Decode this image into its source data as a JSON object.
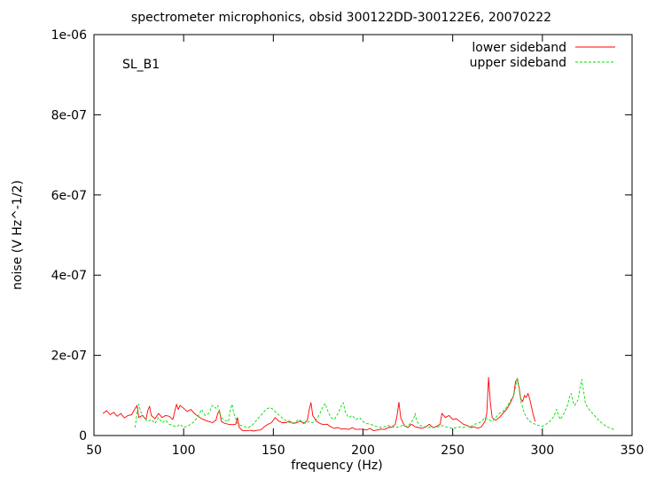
{
  "chart_data": {
    "type": "line",
    "title": "spectrometer microphonics, obsid 300122DD-300122E6, 20070222",
    "annotation": "SL_B1",
    "xlabel": "frequency (Hz)",
    "ylabel": "noise (V Hz^-1/2)",
    "xlim": [
      50,
      350
    ],
    "ylim": [
      0,
      1e-06
    ],
    "xticks": [
      50,
      100,
      150,
      200,
      250,
      300,
      350
    ],
    "xtick_labels": [
      "50",
      "100",
      "150",
      "200",
      "250",
      "300",
      "350"
    ],
    "yticks": [
      0,
      2e-07,
      4e-07,
      6e-07,
      8e-07,
      1e-06
    ],
    "ytick_labels": [
      "0",
      "2e-07",
      "4e-07",
      "6e-07",
      "8e-07",
      "1e-06"
    ],
    "grid": false,
    "legend_position": "top-right",
    "series": [
      {
        "name": "lower sideband",
        "color": "#ff0000",
        "dashed": false,
        "points": [
          [
            55,
            5.5e-08
          ],
          [
            57,
            6.2e-08
          ],
          [
            59,
            5.2e-08
          ],
          [
            61,
            5.8e-08
          ],
          [
            63,
            4.8e-08
          ],
          [
            65,
            5.5e-08
          ],
          [
            67,
            4.4e-08
          ],
          [
            69,
            5e-08
          ],
          [
            71,
            5.2e-08
          ],
          [
            73,
            6.8e-08
          ],
          [
            74,
            7.5e-08
          ],
          [
            75,
            4.5e-08
          ],
          [
            77,
            5e-08
          ],
          [
            79,
            4e-08
          ],
          [
            80,
            6.2e-08
          ],
          [
            81,
            7.3e-08
          ],
          [
            82,
            5e-08
          ],
          [
            84,
            4.2e-08
          ],
          [
            86,
            5.5e-08
          ],
          [
            88,
            4.5e-08
          ],
          [
            90,
            5e-08
          ],
          [
            92,
            4.8e-08
          ],
          [
            94,
            4e-08
          ],
          [
            95,
            6e-08
          ],
          [
            96,
            7.8e-08
          ],
          [
            97,
            6.5e-08
          ],
          [
            98,
            7.5e-08
          ],
          [
            100,
            6.8e-08
          ],
          [
            102,
            6e-08
          ],
          [
            104,
            6.5e-08
          ],
          [
            106,
            5.5e-08
          ],
          [
            108,
            4.8e-08
          ],
          [
            110,
            4.2e-08
          ],
          [
            112,
            3.8e-08
          ],
          [
            114,
            3.5e-08
          ],
          [
            116,
            3.2e-08
          ],
          [
            118,
            3.8e-08
          ],
          [
            119,
            5.5e-08
          ],
          [
            120,
            6.2e-08
          ],
          [
            121,
            3.5e-08
          ],
          [
            123,
            3e-08
          ],
          [
            125,
            2.8e-08
          ],
          [
            127,
            2.7e-08
          ],
          [
            129,
            2.8e-08
          ],
          [
            130,
            4.5e-08
          ],
          [
            131,
            2e-08
          ],
          [
            133,
            1.2e-08
          ],
          [
            135,
            1.2e-08
          ],
          [
            137,
            1.3e-08
          ],
          [
            139,
            1.1e-08
          ],
          [
            141,
            1.3e-08
          ],
          [
            143,
            1.4e-08
          ],
          [
            145,
            2.2e-08
          ],
          [
            147,
            2.8e-08
          ],
          [
            149,
            3.2e-08
          ],
          [
            151,
            4.5e-08
          ],
          [
            153,
            3.6e-08
          ],
          [
            155,
            3.2e-08
          ],
          [
            157,
            3.2e-08
          ],
          [
            159,
            3.6e-08
          ],
          [
            161,
            3e-08
          ],
          [
            163,
            3.2e-08
          ],
          [
            165,
            3.6e-08
          ],
          [
            167,
            3e-08
          ],
          [
            169,
            3.8e-08
          ],
          [
            170,
            6.5e-08
          ],
          [
            171,
            8.2e-08
          ],
          [
            172,
            5e-08
          ],
          [
            174,
            3.6e-08
          ],
          [
            176,
            3e-08
          ],
          [
            178,
            2.7e-08
          ],
          [
            180,
            2.8e-08
          ],
          [
            182,
            2.2e-08
          ],
          [
            184,
            1.8e-08
          ],
          [
            186,
            2e-08
          ],
          [
            188,
            1.6e-08
          ],
          [
            190,
            1.7e-08
          ],
          [
            192,
            1.5e-08
          ],
          [
            194,
            2e-08
          ],
          [
            196,
            1.5e-08
          ],
          [
            198,
            1.6e-08
          ],
          [
            200,
            1.5e-08
          ],
          [
            202,
            1.4e-08
          ],
          [
            204,
            1.8e-08
          ],
          [
            206,
            1.2e-08
          ],
          [
            208,
            1.4e-08
          ],
          [
            210,
            1.6e-08
          ],
          [
            212,
            1.5e-08
          ],
          [
            214,
            2e-08
          ],
          [
            216,
            2.1e-08
          ],
          [
            218,
            2.8e-08
          ],
          [
            219,
            5e-08
          ],
          [
            220,
            8.3e-08
          ],
          [
            221,
            4.5e-08
          ],
          [
            223,
            2.5e-08
          ],
          [
            225,
            2e-08
          ],
          [
            227,
            2.8e-08
          ],
          [
            229,
            2.2e-08
          ],
          [
            231,
            2e-08
          ],
          [
            233,
            1.8e-08
          ],
          [
            235,
            2.2e-08
          ],
          [
            237,
            2.8e-08
          ],
          [
            239,
            2e-08
          ],
          [
            241,
            2.3e-08
          ],
          [
            243,
            2.8e-08
          ],
          [
            244,
            5.5e-08
          ],
          [
            246,
            4.5e-08
          ],
          [
            248,
            5e-08
          ],
          [
            250,
            4e-08
          ],
          [
            252,
            4.2e-08
          ],
          [
            254,
            3.5e-08
          ],
          [
            256,
            2.8e-08
          ],
          [
            258,
            2.5e-08
          ],
          [
            260,
            2e-08
          ],
          [
            262,
            2.2e-08
          ],
          [
            264,
            1.8e-08
          ],
          [
            266,
            2.2e-08
          ],
          [
            268,
            3.5e-08
          ],
          [
            269,
            5.5e-08
          ],
          [
            270,
            1.45e-07
          ],
          [
            271,
            8e-08
          ],
          [
            272,
            4.5e-08
          ],
          [
            274,
            3.8e-08
          ],
          [
            276,
            4.5e-08
          ],
          [
            278,
            5.5e-08
          ],
          [
            280,
            6.5e-08
          ],
          [
            282,
            8e-08
          ],
          [
            284,
            1e-07
          ],
          [
            285,
            1.35e-07
          ],
          [
            286,
            1.4e-07
          ],
          [
            287,
            1.2e-07
          ],
          [
            288,
            9e-08
          ],
          [
            289,
            8.5e-08
          ],
          [
            290,
            1e-07
          ],
          [
            291,
            9.5e-08
          ],
          [
            292,
            1.05e-07
          ],
          [
            293,
            9e-08
          ],
          [
            294,
            7e-08
          ],
          [
            295,
            5e-08
          ],
          [
            296,
            3.5e-08
          ]
        ]
      },
      {
        "name": "upper sideband",
        "color": "#00dd00",
        "dashed": true,
        "points": [
          [
            73,
            2e-08
          ],
          [
            74,
            5.8e-08
          ],
          [
            75,
            7.8e-08
          ],
          [
            76,
            6e-08
          ],
          [
            78,
            4.5e-08
          ],
          [
            80,
            3.5e-08
          ],
          [
            82,
            4e-08
          ],
          [
            84,
            3e-08
          ],
          [
            86,
            4.5e-08
          ],
          [
            88,
            3.2e-08
          ],
          [
            90,
            3.8e-08
          ],
          [
            92,
            2.8e-08
          ],
          [
            94,
            2.5e-08
          ],
          [
            96,
            2.2e-08
          ],
          [
            98,
            2.8e-08
          ],
          [
            100,
            2e-08
          ],
          [
            102,
            2.3e-08
          ],
          [
            104,
            2.8e-08
          ],
          [
            106,
            3.5e-08
          ],
          [
            108,
            4.8e-08
          ],
          [
            110,
            6.5e-08
          ],
          [
            112,
            5e-08
          ],
          [
            114,
            5.5e-08
          ],
          [
            116,
            7.5e-08
          ],
          [
            118,
            6.8e-08
          ],
          [
            119,
            7.5e-08
          ],
          [
            120,
            6e-08
          ],
          [
            121,
            4.5e-08
          ],
          [
            123,
            3.8e-08
          ],
          [
            125,
            3.5e-08
          ],
          [
            126,
            6.5e-08
          ],
          [
            127,
            7.8e-08
          ],
          [
            128,
            5.5e-08
          ],
          [
            130,
            3e-08
          ],
          [
            132,
            2.5e-08
          ],
          [
            134,
            2.2e-08
          ],
          [
            136,
            2e-08
          ],
          [
            138,
            2.5e-08
          ],
          [
            140,
            3.5e-08
          ],
          [
            142,
            4.5e-08
          ],
          [
            144,
            5.5e-08
          ],
          [
            146,
            6.5e-08
          ],
          [
            148,
            7e-08
          ],
          [
            150,
            6.5e-08
          ],
          [
            152,
            5.5e-08
          ],
          [
            154,
            4.8e-08
          ],
          [
            156,
            4e-08
          ],
          [
            158,
            3.5e-08
          ],
          [
            160,
            3e-08
          ],
          [
            162,
            3.2e-08
          ],
          [
            164,
            4e-08
          ],
          [
            166,
            3.5e-08
          ],
          [
            168,
            3e-08
          ],
          [
            170,
            3.5e-08
          ],
          [
            172,
            3.2e-08
          ],
          [
            174,
            4e-08
          ],
          [
            176,
            5.5e-08
          ],
          [
            178,
            7.5e-08
          ],
          [
            179,
            8e-08
          ],
          [
            180,
            6.5e-08
          ],
          [
            182,
            4.5e-08
          ],
          [
            184,
            4e-08
          ],
          [
            186,
            5.5e-08
          ],
          [
            188,
            7.5e-08
          ],
          [
            189,
            8.2e-08
          ],
          [
            190,
            6e-08
          ],
          [
            192,
            4.5e-08
          ],
          [
            194,
            5e-08
          ],
          [
            196,
            4e-08
          ],
          [
            198,
            4.5e-08
          ],
          [
            200,
            3.5e-08
          ],
          [
            202,
            3e-08
          ],
          [
            204,
            2.8e-08
          ],
          [
            206,
            2.5e-08
          ],
          [
            208,
            2.2e-08
          ],
          [
            210,
            2e-08
          ],
          [
            212,
            2.2e-08
          ],
          [
            214,
            2.5e-08
          ],
          [
            216,
            2.2e-08
          ],
          [
            218,
            2e-08
          ],
          [
            220,
            2.2e-08
          ],
          [
            222,
            2.5e-08
          ],
          [
            224,
            2.2e-08
          ],
          [
            226,
            2.8e-08
          ],
          [
            228,
            4e-08
          ],
          [
            229,
            5.5e-08
          ],
          [
            230,
            3.5e-08
          ],
          [
            232,
            2.5e-08
          ],
          [
            234,
            2.2e-08
          ],
          [
            236,
            2e-08
          ],
          [
            238,
            2.2e-08
          ],
          [
            240,
            2e-08
          ],
          [
            242,
            2.2e-08
          ],
          [
            244,
            2.5e-08
          ],
          [
            246,
            2.2e-08
          ],
          [
            248,
            2e-08
          ],
          [
            250,
            1.8e-08
          ],
          [
            252,
            2e-08
          ],
          [
            254,
            2.2e-08
          ],
          [
            256,
            2e-08
          ],
          [
            258,
            2.5e-08
          ],
          [
            260,
            2.2e-08
          ],
          [
            262,
            2.8e-08
          ],
          [
            264,
            3e-08
          ],
          [
            266,
            3.5e-08
          ],
          [
            268,
            4.5e-08
          ],
          [
            270,
            4e-08
          ],
          [
            272,
            3.5e-08
          ],
          [
            274,
            4.5e-08
          ],
          [
            276,
            5.5e-08
          ],
          [
            278,
            6e-08
          ],
          [
            280,
            7e-08
          ],
          [
            282,
            8.5e-08
          ],
          [
            284,
            1e-07
          ],
          [
            285,
            1.2e-07
          ],
          [
            286,
            1.45e-07
          ],
          [
            287,
            1.2e-07
          ],
          [
            288,
            8.5e-08
          ],
          [
            290,
            5.5e-08
          ],
          [
            292,
            4e-08
          ],
          [
            294,
            3.2e-08
          ],
          [
            296,
            2.8e-08
          ],
          [
            298,
            2.5e-08
          ],
          [
            300,
            2.3e-08
          ],
          [
            302,
            2.8e-08
          ],
          [
            304,
            3.5e-08
          ],
          [
            306,
            4.5e-08
          ],
          [
            308,
            6.5e-08
          ],
          [
            309,
            5e-08
          ],
          [
            310,
            4e-08
          ],
          [
            312,
            5.5e-08
          ],
          [
            314,
            7.5e-08
          ],
          [
            315,
            9.5e-08
          ],
          [
            316,
            1.05e-07
          ],
          [
            317,
            8.5e-08
          ],
          [
            318,
            7.5e-08
          ],
          [
            320,
            9e-08
          ],
          [
            321,
            1.2e-07
          ],
          [
            322,
            1.4e-07
          ],
          [
            323,
            1.1e-07
          ],
          [
            324,
            8e-08
          ],
          [
            326,
            6.5e-08
          ],
          [
            328,
            5.5e-08
          ],
          [
            330,
            4.5e-08
          ],
          [
            332,
            3.5e-08
          ],
          [
            334,
            2.8e-08
          ],
          [
            336,
            2.2e-08
          ],
          [
            338,
            1.8e-08
          ],
          [
            340,
            1.5e-08
          ]
        ]
      }
    ]
  }
}
